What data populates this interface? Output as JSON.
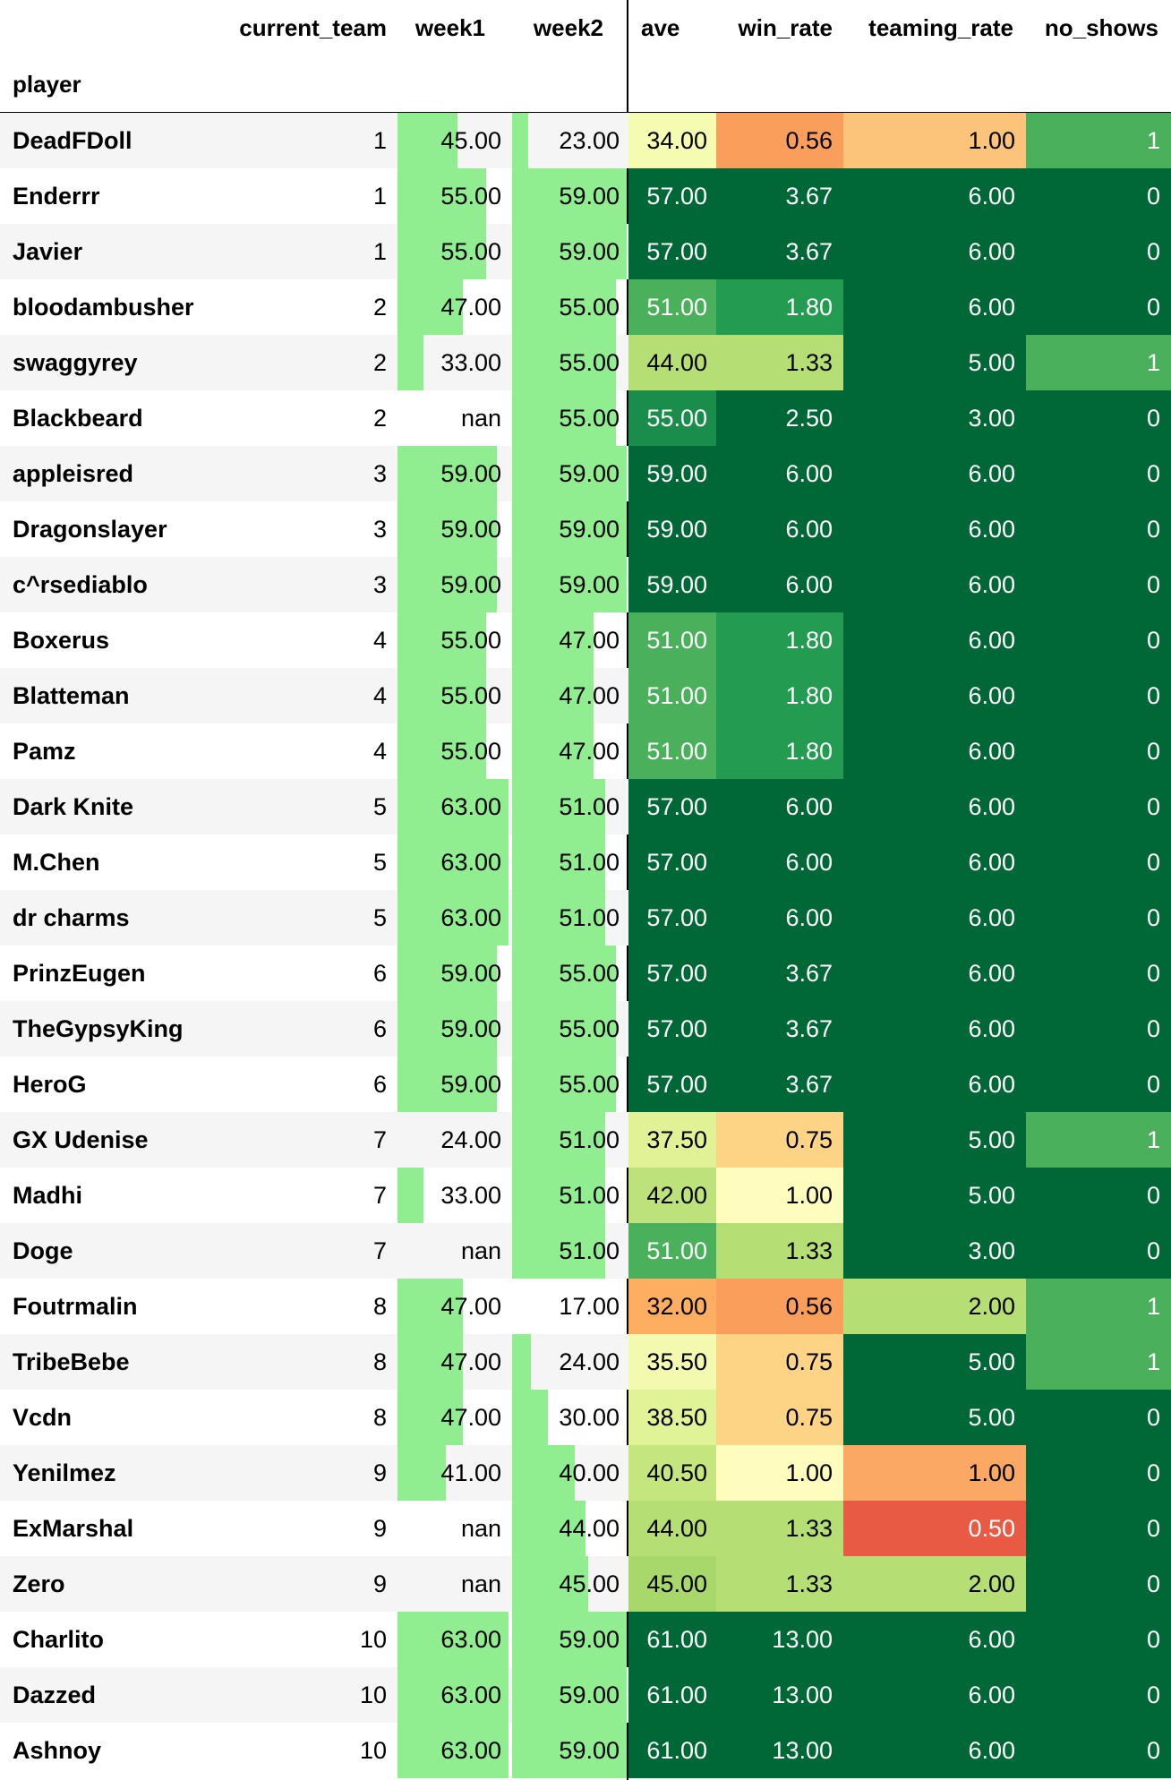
{
  "table": {
    "index_name": "player",
    "columns": [
      "current_team",
      "week1",
      "week2",
      "ave",
      "win_rate",
      "teaming_rate",
      "no_shows"
    ],
    "rows": [
      {
        "player": "DeadFDoll",
        "current_team": "1",
        "week1": "45.00",
        "week2": "23.00",
        "ave": "34.00",
        "win_rate": "0.56",
        "teaming_rate": "1.00",
        "no_shows": "1"
      },
      {
        "player": "Enderrr",
        "current_team": "1",
        "week1": "55.00",
        "week2": "59.00",
        "ave": "57.00",
        "win_rate": "3.67",
        "teaming_rate": "6.00",
        "no_shows": "0"
      },
      {
        "player": "Javier",
        "current_team": "1",
        "week1": "55.00",
        "week2": "59.00",
        "ave": "57.00",
        "win_rate": "3.67",
        "teaming_rate": "6.00",
        "no_shows": "0"
      },
      {
        "player": "bloodambusher",
        "current_team": "2",
        "week1": "47.00",
        "week2": "55.00",
        "ave": "51.00",
        "win_rate": "1.80",
        "teaming_rate": "6.00",
        "no_shows": "0"
      },
      {
        "player": "swaggyrey",
        "current_team": "2",
        "week1": "33.00",
        "week2": "55.00",
        "ave": "44.00",
        "win_rate": "1.33",
        "teaming_rate": "5.00",
        "no_shows": "1"
      },
      {
        "player": "Blackbeard",
        "current_team": "2",
        "week1": "nan",
        "week2": "55.00",
        "ave": "55.00",
        "win_rate": "2.50",
        "teaming_rate": "3.00",
        "no_shows": "0"
      },
      {
        "player": "appleisred",
        "current_team": "3",
        "week1": "59.00",
        "week2": "59.00",
        "ave": "59.00",
        "win_rate": "6.00",
        "teaming_rate": "6.00",
        "no_shows": "0"
      },
      {
        "player": "Dragonslayer",
        "current_team": "3",
        "week1": "59.00",
        "week2": "59.00",
        "ave": "59.00",
        "win_rate": "6.00",
        "teaming_rate": "6.00",
        "no_shows": "0"
      },
      {
        "player": "c^rsediablo",
        "current_team": "3",
        "week1": "59.00",
        "week2": "59.00",
        "ave": "59.00",
        "win_rate": "6.00",
        "teaming_rate": "6.00",
        "no_shows": "0"
      },
      {
        "player": "Boxerus",
        "current_team": "4",
        "week1": "55.00",
        "week2": "47.00",
        "ave": "51.00",
        "win_rate": "1.80",
        "teaming_rate": "6.00",
        "no_shows": "0"
      },
      {
        "player": "Blatteman",
        "current_team": "4",
        "week1": "55.00",
        "week2": "47.00",
        "ave": "51.00",
        "win_rate": "1.80",
        "teaming_rate": "6.00",
        "no_shows": "0"
      },
      {
        "player": "Pamz",
        "current_team": "4",
        "week1": "55.00",
        "week2": "47.00",
        "ave": "51.00",
        "win_rate": "1.80",
        "teaming_rate": "6.00",
        "no_shows": "0"
      },
      {
        "player": "Dark Knite",
        "current_team": "5",
        "week1": "63.00",
        "week2": "51.00",
        "ave": "57.00",
        "win_rate": "6.00",
        "teaming_rate": "6.00",
        "no_shows": "0"
      },
      {
        "player": "M.Chen",
        "current_team": "5",
        "week1": "63.00",
        "week2": "51.00",
        "ave": "57.00",
        "win_rate": "6.00",
        "teaming_rate": "6.00",
        "no_shows": "0"
      },
      {
        "player": "dr charms",
        "current_team": "5",
        "week1": "63.00",
        "week2": "51.00",
        "ave": "57.00",
        "win_rate": "6.00",
        "teaming_rate": "6.00",
        "no_shows": "0"
      },
      {
        "player": "PrinzEugen",
        "current_team": "6",
        "week1": "59.00",
        "week2": "55.00",
        "ave": "57.00",
        "win_rate": "3.67",
        "teaming_rate": "6.00",
        "no_shows": "0"
      },
      {
        "player": "TheGypsyKing",
        "current_team": "6",
        "week1": "59.00",
        "week2": "55.00",
        "ave": "57.00",
        "win_rate": "3.67",
        "teaming_rate": "6.00",
        "no_shows": "0"
      },
      {
        "player": "HeroG",
        "current_team": "6",
        "week1": "59.00",
        "week2": "55.00",
        "ave": "57.00",
        "win_rate": "3.67",
        "teaming_rate": "6.00",
        "no_shows": "0"
      },
      {
        "player": "GX Udenise",
        "current_team": "7",
        "week1": "24.00",
        "week2": "51.00",
        "ave": "37.50",
        "win_rate": "0.75",
        "teaming_rate": "5.00",
        "no_shows": "1"
      },
      {
        "player": "Madhi",
        "current_team": "7",
        "week1": "33.00",
        "week2": "51.00",
        "ave": "42.00",
        "win_rate": "1.00",
        "teaming_rate": "5.00",
        "no_shows": "0"
      },
      {
        "player": "Doge",
        "current_team": "7",
        "week1": "nan",
        "week2": "51.00",
        "ave": "51.00",
        "win_rate": "1.33",
        "teaming_rate": "3.00",
        "no_shows": "0"
      },
      {
        "player": "Foutrmalin",
        "current_team": "8",
        "week1": "47.00",
        "week2": "17.00",
        "ave": "32.00",
        "win_rate": "0.56",
        "teaming_rate": "2.00",
        "no_shows": "1"
      },
      {
        "player": "TribeBebe",
        "current_team": "8",
        "week1": "47.00",
        "week2": "24.00",
        "ave": "35.50",
        "win_rate": "0.75",
        "teaming_rate": "5.00",
        "no_shows": "1"
      },
      {
        "player": "Vcdn",
        "current_team": "8",
        "week1": "47.00",
        "week2": "30.00",
        "ave": "38.50",
        "win_rate": "0.75",
        "teaming_rate": "5.00",
        "no_shows": "0"
      },
      {
        "player": "Yenilmez",
        "current_team": "9",
        "week1": "41.00",
        "week2": "40.00",
        "ave": "40.50",
        "win_rate": "1.00",
        "teaming_rate": "1.00",
        "no_shows": "0"
      },
      {
        "player": "ExMarshal",
        "current_team": "9",
        "week1": "nan",
        "week2": "44.00",
        "ave": "44.00",
        "win_rate": "1.33",
        "teaming_rate": "0.50",
        "no_shows": "0"
      },
      {
        "player": "Zero",
        "current_team": "9",
        "week1": "nan",
        "week2": "45.00",
        "ave": "45.00",
        "win_rate": "1.33",
        "teaming_rate": "2.00",
        "no_shows": "0"
      },
      {
        "player": "Charlito",
        "current_team": "10",
        "week1": "63.00",
        "week2": "59.00",
        "ave": "61.00",
        "win_rate": "13.00",
        "teaming_rate": "6.00",
        "no_shows": "0"
      },
      {
        "player": "Dazzed",
        "current_team": "10",
        "week1": "63.00",
        "week2": "59.00",
        "ave": "61.00",
        "win_rate": "13.00",
        "teaming_rate": "6.00",
        "no_shows": "0"
      },
      {
        "player": "Ashnoy",
        "current_team": "10",
        "week1": "63.00",
        "week2": "59.00",
        "ave": "61.00",
        "win_rate": "13.00",
        "teaming_rate": "6.00",
        "no_shows": "0"
      }
    ]
  },
  "bar_color": "#90ee90",
  "heatmap_colors": {
    "ave": [
      "#f6fbb2",
      "#006837",
      "#006837",
      "#4bb05c",
      "#b5df75",
      "#1b8d4b",
      "#006837",
      "#006837",
      "#006837",
      "#4bb05c",
      "#4bb05c",
      "#4bb05c",
      "#006837",
      "#006837",
      "#006837",
      "#006837",
      "#006837",
      "#006837",
      "#e0f295",
      "#bde27c",
      "#4bb05c",
      "#fdae61",
      "#f3f9ae",
      "#e1f397",
      "#c5e57f",
      "#b5df75",
      "#a8d86c",
      "#006837",
      "#006837",
      "#006837"
    ],
    "win_rate": [
      "#fa9e5c",
      "#006837",
      "#006837",
      "#239c51",
      "#b5df75",
      "#006837",
      "#006837",
      "#006837",
      "#006837",
      "#239c51",
      "#239c51",
      "#239c51",
      "#006837",
      "#006837",
      "#006837",
      "#006837",
      "#006837",
      "#006837",
      "#fdd386",
      "#fefdbd",
      "#b5df75",
      "#fa9e5c",
      "#fdd386",
      "#fdd386",
      "#fefdbd",
      "#b5df75",
      "#b5df75",
      "#006837",
      "#006837",
      "#006837"
    ],
    "teaming_rate": [
      "#fcc47a",
      "#006837",
      "#006837",
      "#006837",
      "#006837",
      "#006837",
      "#006837",
      "#006837",
      "#006837",
      "#006837",
      "#006837",
      "#006837",
      "#006837",
      "#006837",
      "#006837",
      "#006837",
      "#006837",
      "#006837",
      "#006837",
      "#006837",
      "#006837",
      "#b5df75",
      "#006837",
      "#006837",
      "#fba865",
      "#e85a44",
      "#b5df75",
      "#006837",
      "#006837",
      "#006837"
    ],
    "no_shows": [
      "#4bb05c",
      "#006837",
      "#006837",
      "#006837",
      "#4bb05c",
      "#006837",
      "#006837",
      "#006837",
      "#006837",
      "#006837",
      "#006837",
      "#006837",
      "#006837",
      "#006837",
      "#006837",
      "#006837",
      "#006837",
      "#006837",
      "#4bb05c",
      "#006837",
      "#006837",
      "#4bb05c",
      "#4bb05c",
      "#006837",
      "#006837",
      "#006837",
      "#006837",
      "#006837",
      "#006837",
      "#006837"
    ]
  },
  "heatmap_text_colors": {
    "ave": [
      "#000",
      "#fff",
      "#fff",
      "#fff",
      "#000",
      "#fff",
      "#fff",
      "#fff",
      "#fff",
      "#fff",
      "#fff",
      "#fff",
      "#fff",
      "#fff",
      "#fff",
      "#fff",
      "#fff",
      "#fff",
      "#000",
      "#000",
      "#fff",
      "#000",
      "#000",
      "#000",
      "#000",
      "#000",
      "#000",
      "#fff",
      "#fff",
      "#fff"
    ],
    "win_rate": [
      "#000",
      "#fff",
      "#fff",
      "#fff",
      "#000",
      "#fff",
      "#fff",
      "#fff",
      "#fff",
      "#fff",
      "#fff",
      "#fff",
      "#fff",
      "#fff",
      "#fff",
      "#fff",
      "#fff",
      "#fff",
      "#000",
      "#000",
      "#000",
      "#000",
      "#000",
      "#000",
      "#000",
      "#000",
      "#000",
      "#fff",
      "#fff",
      "#fff"
    ],
    "teaming_rate": [
      "#000",
      "#fff",
      "#fff",
      "#fff",
      "#fff",
      "#fff",
      "#fff",
      "#fff",
      "#fff",
      "#fff",
      "#fff",
      "#fff",
      "#fff",
      "#fff",
      "#fff",
      "#fff",
      "#fff",
      "#fff",
      "#fff",
      "#fff",
      "#fff",
      "#000",
      "#fff",
      "#fff",
      "#000",
      "#fff",
      "#000",
      "#fff",
      "#fff",
      "#fff"
    ],
    "no_shows": [
      "#fff",
      "#fff",
      "#fff",
      "#fff",
      "#fff",
      "#fff",
      "#fff",
      "#fff",
      "#fff",
      "#fff",
      "#fff",
      "#fff",
      "#fff",
      "#fff",
      "#fff",
      "#fff",
      "#fff",
      "#fff",
      "#fff",
      "#fff",
      "#fff",
      "#fff",
      "#fff",
      "#fff",
      "#fff",
      "#fff",
      "#fff",
      "#fff",
      "#fff",
      "#fff"
    ]
  }
}
